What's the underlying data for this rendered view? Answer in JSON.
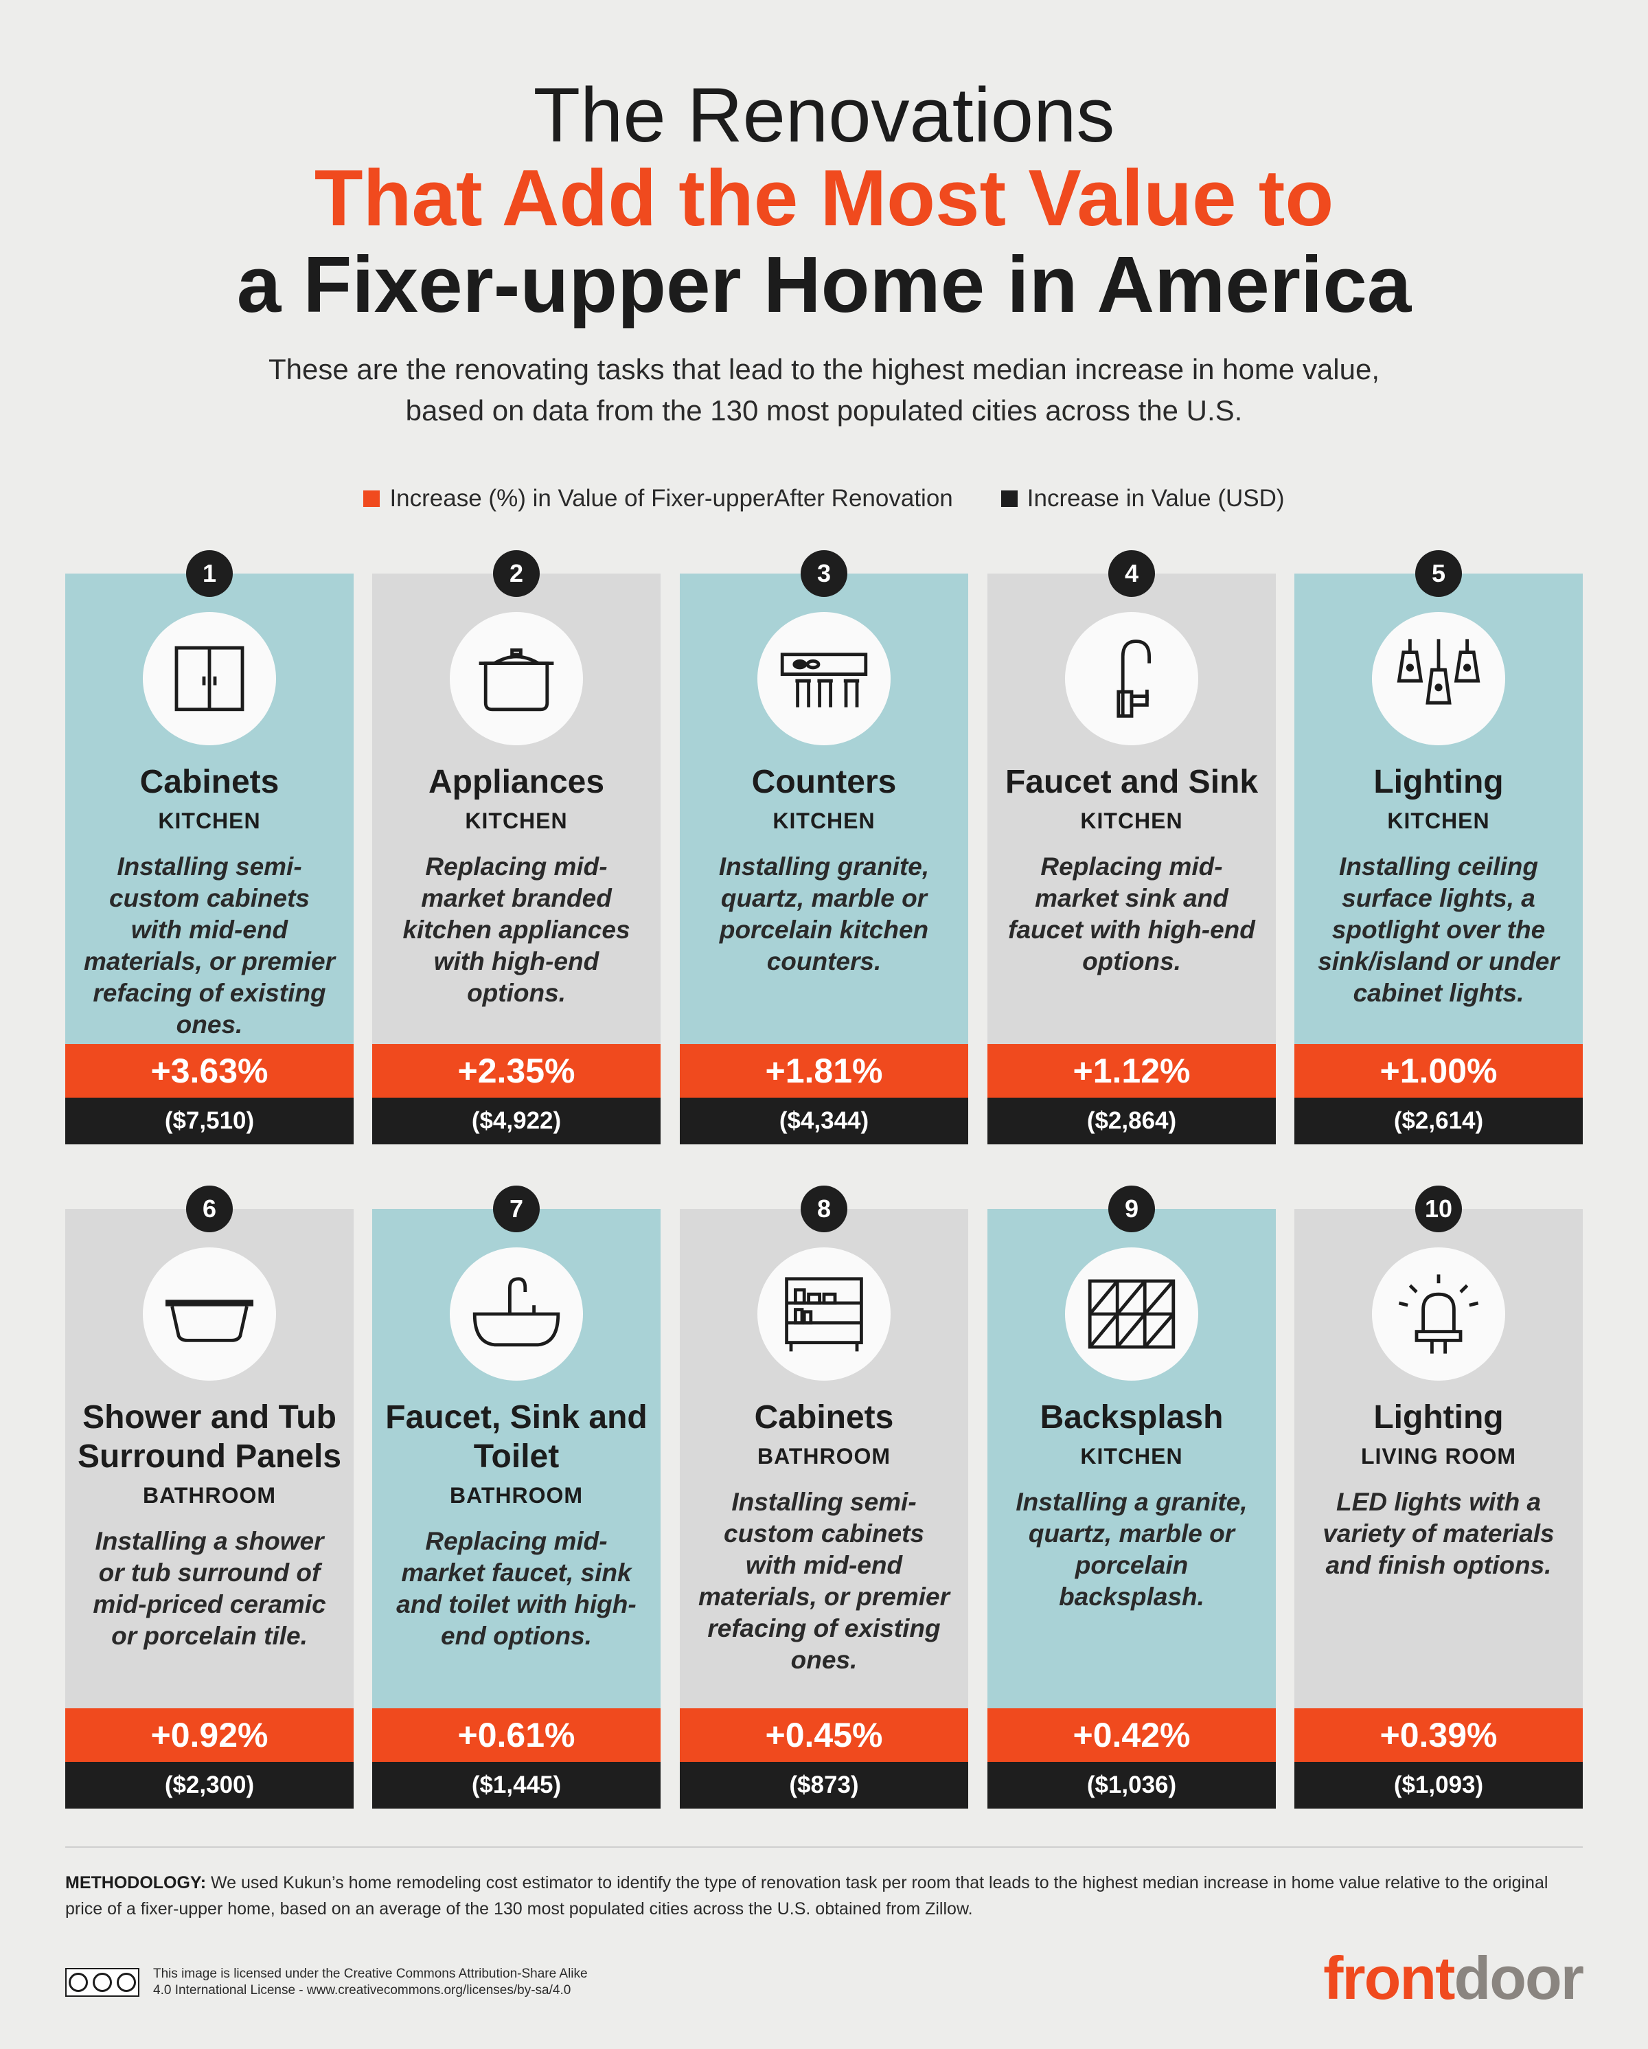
{
  "header": {
    "title_line1": "The Renovations",
    "title_line2": "That Add the Most Value to",
    "title_line3": "a Fixer-upper Home in America",
    "subtitle": "These are the renovating tasks that lead to the highest median increase in home value, based on data from the 130 most populated cities across the U.S."
  },
  "legend": {
    "percent_label": "Increase (%) in Value of Fixer-upperAfter Renovation",
    "usd_label": "Increase in Value (USD)",
    "percent_color": "#f04a1e",
    "usd_color": "#1e1e1e"
  },
  "colors": {
    "card_blue": "#a9d2d6",
    "card_gray": "#d9d9d9",
    "accent": "#f04a1e",
    "dark": "#1e1e1e"
  },
  "cards": [
    {
      "rank": "1",
      "name": "Cabinets",
      "room": "KITCHEN",
      "desc": "Installing semi-custom cabinets with mid-end materials, or premier refacing of existing ones.",
      "percent": "+3.63%",
      "usd": "($7,510)",
      "icon": "cabinet-icon",
      "bg": "blue"
    },
    {
      "rank": "2",
      "name": "Appliances",
      "room": "KITCHEN",
      "desc": "Replacing mid-market branded kitchen appliances with high-end options.",
      "percent": "+2.35%",
      "usd": "($4,922)",
      "icon": "pot-icon",
      "bg": "gray"
    },
    {
      "rank": "3",
      "name": "Counters",
      "room": "KITCHEN",
      "desc": "Installing granite, quartz, marble or porcelain kitchen counters.",
      "percent": "+1.81%",
      "usd": "($4,344)",
      "icon": "counter-icon",
      "bg": "blue"
    },
    {
      "rank": "4",
      "name": "Faucet and Sink",
      "room": "KITCHEN",
      "desc": "Replacing mid-market sink and faucet with high-end options.",
      "percent": "+1.12%",
      "usd": "($2,864)",
      "icon": "faucet-icon",
      "bg": "gray"
    },
    {
      "rank": "5",
      "name": "Lighting",
      "room": "KITCHEN",
      "desc": "Installing ceiling surface lights, a spotlight over the sink/island or under cabinet lights.",
      "percent": "+1.00%",
      "usd": "($2,614)",
      "icon": "pendant-lights-icon",
      "bg": "blue"
    },
    {
      "rank": "6",
      "name": "Shower and Tub Surround Panels",
      "room": "BATHROOM",
      "desc": "Installing a shower or tub surround of mid-priced ceramic or porcelain tile.",
      "percent": "+0.92%",
      "usd": "($2,300)",
      "icon": "bathtub-icon",
      "bg": "gray"
    },
    {
      "rank": "7",
      "name": "Faucet, Sink and Toilet",
      "room": "BATHROOM",
      "desc": "Replacing mid-market faucet, sink and toilet with high-end options.",
      "percent": "+0.61%",
      "usd": "($1,445)",
      "icon": "sink-icon",
      "bg": "blue"
    },
    {
      "rank": "8",
      "name": "Cabinets",
      "room": "BATHROOM",
      "desc": "Installing semi-custom cabinets with mid-end materials, or premier refacing of existing ones.",
      "percent": "+0.45%",
      "usd": "($873)",
      "icon": "shelf-icon",
      "bg": "gray"
    },
    {
      "rank": "9",
      "name": "Backsplash",
      "room": "KITCHEN",
      "desc": "Installing a granite, quartz, marble or porcelain backsplash.",
      "percent": "+0.42%",
      "usd": "($1,036)",
      "icon": "tile-icon",
      "bg": "blue"
    },
    {
      "rank": "10",
      "name": "Lighting",
      "room": "LIVING ROOM",
      "desc": "LED lights with a variety of materials and finish options.",
      "percent": "+0.39%",
      "usd": "($1,093)",
      "icon": "led-bulb-icon",
      "bg": "gray"
    }
  ],
  "footer": {
    "method_label": "METHODOLOGY:",
    "method_text": " We used Kukun’s home remodeling cost estimator to identify the type of renovation task per room that leads to the highest median increase in home value relative to the original price of a fixer-upper home, based on an average of the 130 most populated cities across the U.S. obtained from Zillow.",
    "license_line1": "This image is licensed under the Creative Commons Attribution-Share Alike",
    "license_line2": "4.0 International License - www.creativecommons.org/licenses/by-sa/4.0",
    "logo_part1": "front",
    "logo_part2": "door"
  }
}
